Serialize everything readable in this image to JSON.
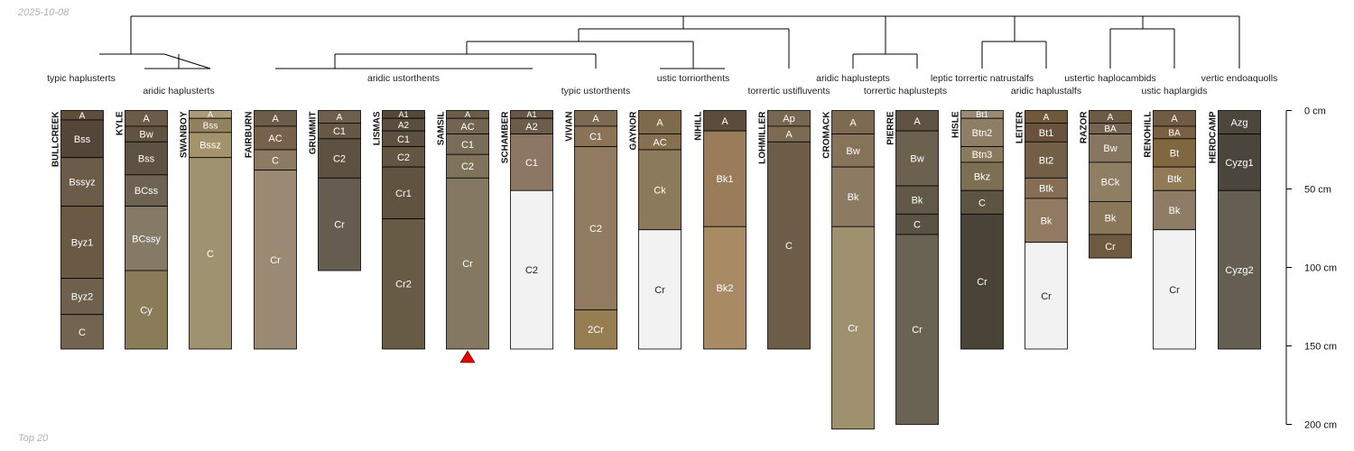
{
  "header": {
    "date": "2025-10-08"
  },
  "footer": {
    "caption": "Top 20"
  },
  "chart_data": {
    "type": "soil_profile_dendrogram",
    "depth_unit": "cm",
    "depth_range": [
      0,
      200
    ],
    "depth_ticks": [
      0,
      50,
      100,
      150,
      200
    ],
    "depth_tick_labels": [
      "0 cm",
      "50 cm",
      "100 cm",
      "150 cm",
      "200 cm"
    ],
    "marker_profile": "SAMSIL",
    "taxa": [
      {
        "name": "typic haplusterts"
      },
      {
        "name": "aridic haplusterts"
      },
      {
        "name": "aridic ustorthents"
      },
      {
        "name": "typic ustorthents"
      },
      {
        "name": "ustic torriorthents"
      },
      {
        "name": "torrertic ustifluvents"
      },
      {
        "name": "aridic haplustepts"
      },
      {
        "name": "torrertic haplustepts"
      },
      {
        "name": "leptic torrertic natrustalfs"
      },
      {
        "name": "aridic haplustalfs"
      },
      {
        "name": "ustertic haplocambids"
      },
      {
        "name": "ustic haplargids"
      },
      {
        "name": "vertic endoaquolls"
      }
    ],
    "profiles": [
      {
        "name": "BULLCREEK",
        "horizons": [
          {
            "name": "A",
            "top": 0,
            "bottom": 6,
            "color": "#5f4e3c"
          },
          {
            "name": "Bss",
            "top": 6,
            "bottom": 30,
            "color": "#54473a"
          },
          {
            "name": "Bssyz",
            "top": 30,
            "bottom": 61,
            "color": "#6b5c4a"
          },
          {
            "name": "Byz1",
            "top": 61,
            "bottom": 107,
            "color": "#6a5a44"
          },
          {
            "name": "Byz2",
            "top": 107,
            "bottom": 130,
            "color": "#6e604c"
          },
          {
            "name": "C",
            "top": 130,
            "bottom": 152,
            "color": "#726450"
          }
        ]
      },
      {
        "name": "KYLE",
        "horizons": [
          {
            "name": "A",
            "top": 0,
            "bottom": 10,
            "color": "#6b5b48"
          },
          {
            "name": "Bw",
            "top": 10,
            "bottom": 20,
            "color": "#605440"
          },
          {
            "name": "Bss",
            "top": 20,
            "bottom": 41,
            "color": "#5e5242"
          },
          {
            "name": "BCss",
            "top": 41,
            "bottom": 61,
            "color": "#6e6350"
          },
          {
            "name": "BCssy",
            "top": 61,
            "bottom": 102,
            "color": "#857a66"
          },
          {
            "name": "Cy",
            "top": 102,
            "bottom": 152,
            "color": "#8a7c58"
          }
        ]
      },
      {
        "name": "SWANBOY",
        "horizons": [
          {
            "name": "A",
            "top": 0,
            "bottom": 5,
            "color": "#aa9c7a"
          },
          {
            "name": "Bss",
            "top": 5,
            "bottom": 14,
            "color": "#93805e"
          },
          {
            "name": "Bssz",
            "top": 14,
            "bottom": 30,
            "color": "#a4926a"
          },
          {
            "name": "C",
            "top": 30,
            "bottom": 152,
            "color": "#9e9270"
          }
        ]
      },
      {
        "name": "FAIRBURN",
        "horizons": [
          {
            "name": "A",
            "top": 0,
            "bottom": 10,
            "color": "#6c5c4a"
          },
          {
            "name": "AC",
            "top": 10,
            "bottom": 25,
            "color": "#75614c"
          },
          {
            "name": "C",
            "top": 25,
            "bottom": 38,
            "color": "#8c7a63"
          },
          {
            "name": "Cr",
            "top": 38,
            "bottom": 152,
            "color": "#9c8b74"
          }
        ]
      },
      {
        "name": "GRUMMIT",
        "horizons": [
          {
            "name": "A",
            "top": 0,
            "bottom": 8,
            "color": "#6f604e"
          },
          {
            "name": "C1",
            "top": 8,
            "bottom": 18,
            "color": "#665845"
          },
          {
            "name": "C2",
            "top": 18,
            "bottom": 43,
            "color": "#5d5142"
          },
          {
            "name": "Cr",
            "top": 43,
            "bottom": 102,
            "color": "#675c50"
          }
        ]
      },
      {
        "name": "LISMAS",
        "horizons": [
          {
            "name": "A1",
            "top": 0,
            "bottom": 5,
            "color": "#554a3a"
          },
          {
            "name": "A2",
            "top": 5,
            "bottom": 13,
            "color": "#5a4e3e"
          },
          {
            "name": "C1",
            "top": 13,
            "bottom": 23,
            "color": "#5c5040"
          },
          {
            "name": "C2",
            "top": 23,
            "bottom": 36,
            "color": "#625642"
          },
          {
            "name": "Cr1",
            "top": 36,
            "bottom": 69,
            "color": "#605440"
          },
          {
            "name": "Cr2",
            "top": 69,
            "bottom": 152,
            "color": "#675b45"
          }
        ]
      },
      {
        "name": "SAMSIL",
        "horizons": [
          {
            "name": "A",
            "top": 0,
            "bottom": 5,
            "color": "#6c5e4a"
          },
          {
            "name": "AC",
            "top": 5,
            "bottom": 15,
            "color": "#726450"
          },
          {
            "name": "C1",
            "top": 15,
            "bottom": 28,
            "color": "#7a6d58"
          },
          {
            "name": "C2",
            "top": 28,
            "bottom": 43,
            "color": "#7f735c"
          },
          {
            "name": "Cr",
            "top": 43,
            "bottom": 152,
            "color": "#847860"
          }
        ]
      },
      {
        "name": "SCHAMBER",
        "horizons": [
          {
            "name": "A1",
            "top": 0,
            "bottom": 5,
            "color": "#665746"
          },
          {
            "name": "A2",
            "top": 5,
            "bottom": 15,
            "color": "#6c5c4a"
          },
          {
            "name": "C1",
            "top": 15,
            "bottom": 51,
            "color": "#8b7763"
          },
          {
            "name": "C2",
            "top": 51,
            "bottom": 152,
            "color": "#f2f2f2"
          }
        ]
      },
      {
        "name": "VIVIAN",
        "horizons": [
          {
            "name": "A",
            "top": 0,
            "bottom": 10,
            "color": "#7c6a52"
          },
          {
            "name": "C1",
            "top": 10,
            "bottom": 23,
            "color": "#8a7356"
          },
          {
            "name": "C2",
            "top": 23,
            "bottom": 127,
            "color": "#907a60"
          },
          {
            "name": "2Cr",
            "top": 127,
            "bottom": 152,
            "color": "#967e52"
          }
        ]
      },
      {
        "name": "GAYNOR",
        "horizons": [
          {
            "name": "A",
            "top": 0,
            "bottom": 15,
            "color": "#7e6a4c"
          },
          {
            "name": "AC",
            "top": 15,
            "bottom": 25,
            "color": "#86704f"
          },
          {
            "name": "Ck",
            "top": 25,
            "bottom": 76,
            "color": "#8c7a5c"
          },
          {
            "name": "Cr",
            "top": 76,
            "bottom": 152,
            "color": "#f2f2f2"
          }
        ]
      },
      {
        "name": "NIHILL",
        "horizons": [
          {
            "name": "A",
            "top": 0,
            "bottom": 13,
            "color": "#5b4c3c"
          },
          {
            "name": "Bk1",
            "top": 13,
            "bottom": 74,
            "color": "#9a7c5a"
          },
          {
            "name": "Bk2",
            "top": 74,
            "bottom": 152,
            "color": "#a88a64"
          }
        ]
      },
      {
        "name": "LOHMILLER",
        "horizons": [
          {
            "name": "Ap",
            "top": 0,
            "bottom": 10,
            "color": "#776650"
          },
          {
            "name": "A",
            "top": 10,
            "bottom": 20,
            "color": "#7c6a52"
          },
          {
            "name": "C",
            "top": 20,
            "bottom": 152,
            "color": "#6c5c48"
          }
        ]
      },
      {
        "name": "CROMACK",
        "horizons": [
          {
            "name": "A",
            "top": 0,
            "bottom": 15,
            "color": "#7c6a52"
          },
          {
            "name": "Bw",
            "top": 15,
            "bottom": 36,
            "color": "#86735a"
          },
          {
            "name": "Bk",
            "top": 36,
            "bottom": 74,
            "color": "#8c7a62"
          },
          {
            "name": "Cr",
            "top": 74,
            "bottom": 203,
            "color": "#a0916e"
          }
        ]
      },
      {
        "name": "PIERRE",
        "horizons": [
          {
            "name": "A",
            "top": 0,
            "bottom": 13,
            "color": "#5f5444"
          },
          {
            "name": "Bw",
            "top": 13,
            "bottom": 48,
            "color": "#6c614e"
          },
          {
            "name": "Bk",
            "top": 48,
            "bottom": 66,
            "color": "#625848"
          },
          {
            "name": "C",
            "top": 66,
            "bottom": 79,
            "color": "#5a5244"
          },
          {
            "name": "Cr",
            "top": 79,
            "bottom": 200,
            "color": "#6a6252"
          }
        ]
      },
      {
        "name": "HISLE",
        "horizons": [
          {
            "name": "Bt1",
            "top": 0,
            "bottom": 5,
            "color": "#9a8c74"
          },
          {
            "name": "Btn2",
            "top": 5,
            "bottom": 23,
            "color": "#8e7e66"
          },
          {
            "name": "Btn3",
            "top": 23,
            "bottom": 33,
            "color": "#8a7a5e"
          },
          {
            "name": "Bkz",
            "top": 33,
            "bottom": 51,
            "color": "#7d7052"
          },
          {
            "name": "C",
            "top": 51,
            "bottom": 66,
            "color": "#5d5442"
          },
          {
            "name": "Cr",
            "top": 66,
            "bottom": 152,
            "color": "#4a4438"
          }
        ]
      },
      {
        "name": "LEITER",
        "horizons": [
          {
            "name": "A",
            "top": 0,
            "bottom": 8,
            "color": "#70583c"
          },
          {
            "name": "Bt1",
            "top": 8,
            "bottom": 20,
            "color": "#6a533c"
          },
          {
            "name": "Bt2",
            "top": 20,
            "bottom": 43,
            "color": "#735e47"
          },
          {
            "name": "Btk",
            "top": 43,
            "bottom": 56,
            "color": "#856e54"
          },
          {
            "name": "Bk",
            "top": 56,
            "bottom": 84,
            "color": "#927a60"
          },
          {
            "name": "Cr",
            "top": 84,
            "bottom": 152,
            "color": "#f2f2f2"
          }
        ]
      },
      {
        "name": "RAZOR",
        "horizons": [
          {
            "name": "A",
            "top": 0,
            "bottom": 8,
            "color": "#6b5a44"
          },
          {
            "name": "BA",
            "top": 8,
            "bottom": 15,
            "color": "#756450"
          },
          {
            "name": "Bw",
            "top": 15,
            "bottom": 33,
            "color": "#877660"
          },
          {
            "name": "BCk",
            "top": 33,
            "bottom": 58,
            "color": "#8e7e64"
          },
          {
            "name": "Bk",
            "top": 58,
            "bottom": 79,
            "color": "#8a7658"
          },
          {
            "name": "Cr",
            "top": 79,
            "bottom": 94,
            "color": "#6e5a40"
          }
        ]
      },
      {
        "name": "RENOHILL",
        "horizons": [
          {
            "name": "A",
            "top": 0,
            "bottom": 10,
            "color": "#705c44"
          },
          {
            "name": "BA",
            "top": 10,
            "bottom": 18,
            "color": "#7a6042"
          },
          {
            "name": "Bt",
            "top": 18,
            "bottom": 36,
            "color": "#80673f"
          },
          {
            "name": "Btk",
            "top": 36,
            "bottom": 51,
            "color": "#937a56"
          },
          {
            "name": "Bk",
            "top": 51,
            "bottom": 76,
            "color": "#8e7c66"
          },
          {
            "name": "Cr",
            "top": 76,
            "bottom": 152,
            "color": "#f2f2f2"
          }
        ]
      },
      {
        "name": "HERDCAMP",
        "horizons": [
          {
            "name": "Azg",
            "top": 0,
            "bottom": 15,
            "color": "#4c473d"
          },
          {
            "name": "Cyzg1",
            "top": 15,
            "bottom": 51,
            "color": "#4a463e"
          },
          {
            "name": "Cyzg2",
            "top": 51,
            "bottom": 152,
            "color": "#645f52"
          }
        ]
      }
    ]
  }
}
